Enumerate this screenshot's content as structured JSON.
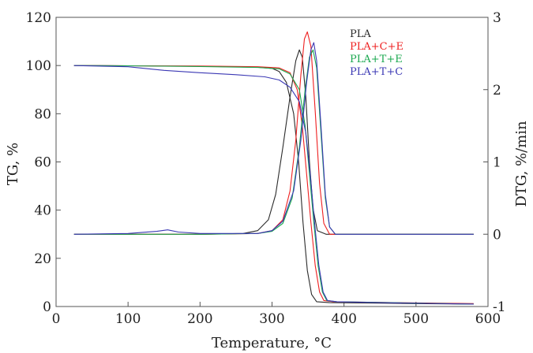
{
  "chart_data": {
    "type": "line",
    "xlabel": "Temperature, °C",
    "ylabel": "TG, %",
    "y2label": "DTG, %/min",
    "xlim": [
      0,
      600
    ],
    "ylim": [
      0,
      120
    ],
    "y2lim": [
      -1,
      3
    ],
    "xticks": [
      0,
      100,
      200,
      300,
      400,
      500,
      600
    ],
    "yticks": [
      0,
      20,
      40,
      60,
      80,
      100,
      120
    ],
    "y2ticks": [
      -1,
      0,
      1,
      2,
      3
    ],
    "grid": false,
    "legend_position": "top-right",
    "series": [
      {
        "name": "PLA",
        "color": "#2a2a2a",
        "tg": [
          [
            25,
            100
          ],
          [
            100,
            99.9
          ],
          [
            200,
            99.7
          ],
          [
            280,
            99.3
          ],
          [
            300,
            98.8
          ],
          [
            310,
            97.5
          ],
          [
            320,
            93
          ],
          [
            330,
            80
          ],
          [
            337,
            60
          ],
          [
            343,
            35
          ],
          [
            349,
            15
          ],
          [
            355,
            5
          ],
          [
            362,
            2
          ],
          [
            380,
            1.6
          ],
          [
            450,
            1.4
          ],
          [
            500,
            1.2
          ],
          [
            580,
            1
          ]
        ],
        "dtg": [
          [
            25,
            0
          ],
          [
            200,
            0
          ],
          [
            260,
            0.01
          ],
          [
            280,
            0.05
          ],
          [
            295,
            0.2
          ],
          [
            305,
            0.55
          ],
          [
            315,
            1.2
          ],
          [
            325,
            1.9
          ],
          [
            333,
            2.4
          ],
          [
            338,
            2.55
          ],
          [
            342,
            2.45
          ],
          [
            347,
            1.9
          ],
          [
            352,
            1
          ],
          [
            357,
            0.35
          ],
          [
            363,
            0.05
          ],
          [
            375,
            0
          ],
          [
            580,
            0
          ]
        ]
      },
      {
        "name": "PLA+C+E",
        "color": "#ee2020",
        "tg": [
          [
            25,
            100
          ],
          [
            100,
            99.9
          ],
          [
            200,
            99.8
          ],
          [
            280,
            99.5
          ],
          [
            310,
            99
          ],
          [
            325,
            97
          ],
          [
            335,
            90
          ],
          [
            342,
            75
          ],
          [
            348,
            55
          ],
          [
            354,
            35
          ],
          [
            360,
            17
          ],
          [
            366,
            6
          ],
          [
            372,
            2.5
          ],
          [
            385,
            2
          ],
          [
            450,
            1.7
          ],
          [
            580,
            1.2
          ]
        ],
        "dtg": [
          [
            25,
            0
          ],
          [
            200,
            0
          ],
          [
            280,
            0.01
          ],
          [
            300,
            0.05
          ],
          [
            315,
            0.2
          ],
          [
            325,
            0.6
          ],
          [
            333,
            1.3
          ],
          [
            340,
            2.2
          ],
          [
            345,
            2.7
          ],
          [
            349,
            2.8
          ],
          [
            354,
            2.6
          ],
          [
            360,
            1.7
          ],
          [
            366,
            0.7
          ],
          [
            372,
            0.15
          ],
          [
            380,
            0
          ],
          [
            580,
            0
          ]
        ]
      },
      {
        "name": "PLA+T+E",
        "color": "#1aa84f",
        "tg": [
          [
            25,
            100
          ],
          [
            100,
            99.9
          ],
          [
            200,
            99.6
          ],
          [
            280,
            99.2
          ],
          [
            310,
            98.6
          ],
          [
            325,
            96.5
          ],
          [
            338,
            90
          ],
          [
            346,
            75
          ],
          [
            352,
            55
          ],
          [
            358,
            35
          ],
          [
            364,
            17
          ],
          [
            370,
            6
          ],
          [
            376,
            2.5
          ],
          [
            390,
            2
          ],
          [
            450,
            1.7
          ],
          [
            580,
            1
          ]
        ],
        "dtg": [
          [
            25,
            0
          ],
          [
            200,
            0
          ],
          [
            280,
            0.01
          ],
          [
            300,
            0.04
          ],
          [
            315,
            0.15
          ],
          [
            328,
            0.5
          ],
          [
            338,
            1.2
          ],
          [
            346,
            2
          ],
          [
            352,
            2.45
          ],
          [
            357,
            2.55
          ],
          [
            362,
            2.3
          ],
          [
            368,
            1.4
          ],
          [
            374,
            0.5
          ],
          [
            380,
            0.1
          ],
          [
            388,
            0
          ],
          [
            580,
            0
          ]
        ]
      },
      {
        "name": "PLA+T+C",
        "color": "#3b38b4",
        "tg": [
          [
            25,
            100
          ],
          [
            100,
            99.5
          ],
          [
            150,
            98
          ],
          [
            200,
            97
          ],
          [
            250,
            96.2
          ],
          [
            290,
            95.3
          ],
          [
            310,
            94
          ],
          [
            325,
            91
          ],
          [
            338,
            85
          ],
          [
            347,
            72
          ],
          [
            353,
            55
          ],
          [
            359,
            35
          ],
          [
            365,
            17
          ],
          [
            371,
            6
          ],
          [
            377,
            2.5
          ],
          [
            390,
            2
          ],
          [
            450,
            1.6
          ],
          [
            580,
            1
          ]
        ],
        "dtg": [
          [
            25,
            0
          ],
          [
            100,
            0.01
          ],
          [
            140,
            0.04
          ],
          [
            155,
            0.06
          ],
          [
            170,
            0.03
          ],
          [
            200,
            0.01
          ],
          [
            280,
            0.01
          ],
          [
            300,
            0.05
          ],
          [
            315,
            0.18
          ],
          [
            330,
            0.6
          ],
          [
            340,
            1.3
          ],
          [
            348,
            2.1
          ],
          [
            354,
            2.55
          ],
          [
            358,
            2.65
          ],
          [
            362,
            2.4
          ],
          [
            368,
            1.5
          ],
          [
            374,
            0.55
          ],
          [
            380,
            0.1
          ],
          [
            388,
            0
          ],
          [
            580,
            0
          ]
        ]
      }
    ]
  }
}
